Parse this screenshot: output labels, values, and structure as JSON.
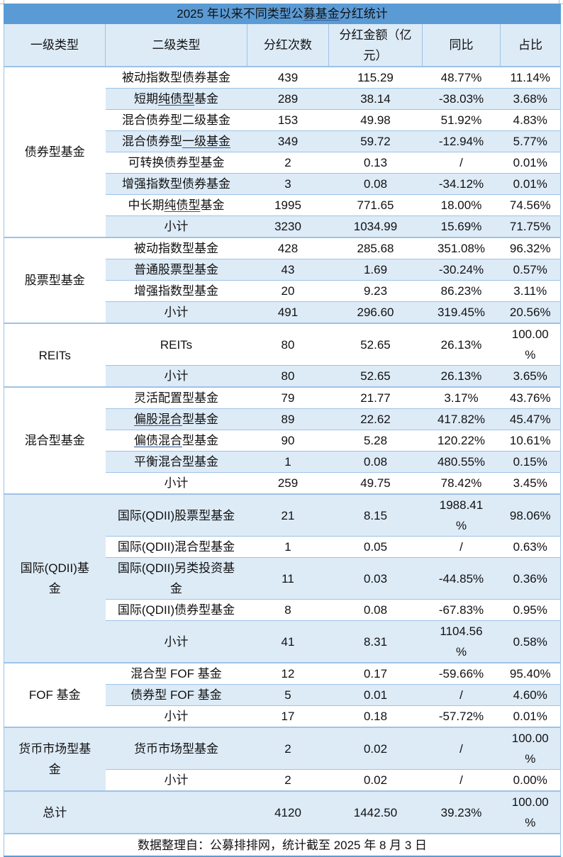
{
  "title": {
    "prefix": "2025 年以来不同类型公",
    "underlined": "募基金",
    "suffix": "分红统计"
  },
  "columns": [
    "一级类型",
    "二级类型",
    "分红次数",
    "分红金额（亿元）",
    "同比",
    "占比"
  ],
  "header_wrapped": {
    "amount_line1": "分红金额（亿",
    "amount_line2": "元）"
  },
  "groups": [
    {
      "name": "债券型基金",
      "rows": [
        {
          "type": "被动指数型债券基金",
          "count": "439",
          "amount": "115.29",
          "yoy": "48.77%",
          "share": "11.14%"
        },
        {
          "type": "短期纯债型基金",
          "count": "289",
          "amount": "38.14",
          "yoy": "-38.03%",
          "share": "3.68%"
        },
        {
          "type": "混合债券型二级基金",
          "count": "153",
          "amount": "49.98",
          "yoy": "51.92%",
          "share": "4.83%"
        },
        {
          "type": "混合债券型一级基金",
          "count": "349",
          "amount": "59.72",
          "yoy": "-12.94%",
          "share": "5.77%"
        },
        {
          "type": "可转换债券型基金",
          "count": "2",
          "amount": "0.13",
          "yoy": "/",
          "share": "0.01%"
        },
        {
          "type": "增强指数型债券基金",
          "count": "3",
          "amount": "0.08",
          "yoy": "-34.12%",
          "share": "0.01%"
        },
        {
          "type": "中长期纯债型基金",
          "count": "1995",
          "amount": "771.65",
          "yoy": "18.00%",
          "share": "74.56%"
        },
        {
          "type": "小计",
          "count": "3230",
          "amount": "1034.99",
          "yoy": "15.69%",
          "share": "71.75%"
        }
      ]
    },
    {
      "name": "股票型基金",
      "rows": [
        {
          "type": "被动指数型基金",
          "count": "428",
          "amount": "285.68",
          "yoy": "351.08%",
          "share": "96.32%"
        },
        {
          "type": "普通股票型基金",
          "count": "43",
          "amount": "1.69",
          "yoy": "-30.24%",
          "share": "0.57%"
        },
        {
          "type": "增强指数型基金",
          "count": "20",
          "amount": "9.23",
          "yoy": "86.23%",
          "share": "3.11%"
        },
        {
          "type": "小计",
          "count": "491",
          "amount": "296.60",
          "yoy": "319.45%",
          "share": "20.56%"
        }
      ]
    },
    {
      "name": "REITs",
      "rows": [
        {
          "type": "REITs",
          "count": "80",
          "amount": "52.65",
          "yoy": "26.13%",
          "share": "100.00%"
        },
        {
          "type": "小计",
          "count": "80",
          "amount": "52.65",
          "yoy": "26.13%",
          "share": "3.65%"
        }
      ]
    },
    {
      "name": "混合型基金",
      "rows": [
        {
          "type": "灵活配置型基金",
          "count": "79",
          "amount": "21.77",
          "yoy": "3.17%",
          "share": "43.76%"
        },
        {
          "type": "偏股混合型基金",
          "count": "89",
          "amount": "22.62",
          "yoy": "417.82%",
          "share": "45.47%"
        },
        {
          "type": "偏债混合型基金",
          "count": "90",
          "amount": "5.28",
          "yoy": "120.22%",
          "share": "10.61%"
        },
        {
          "type": "平衡混合型基金",
          "count": "1",
          "amount": "0.08",
          "yoy": "480.55%",
          "share": "0.15%"
        },
        {
          "type": "小计",
          "count": "259",
          "amount": "49.75",
          "yoy": "78.42%",
          "share": "3.45%"
        }
      ]
    },
    {
      "name": "国际(QDII)基金",
      "rows": [
        {
          "type": "国际(QDII)股票型基金",
          "count": "21",
          "amount": "8.15",
          "yoy": "1988.41%",
          "share": "98.06%"
        },
        {
          "type": "国际(QDII)混合型基金",
          "count": "1",
          "amount": "0.05",
          "yoy": "/",
          "share": "0.63%"
        },
        {
          "type": "国际(QDII)另类投资基金",
          "count": "11",
          "amount": "0.03",
          "yoy": "-44.85%",
          "share": "0.36%"
        },
        {
          "type": "国际(QDII)债券型基金",
          "count": "8",
          "amount": "0.08",
          "yoy": "-67.83%",
          "share": "0.95%"
        },
        {
          "type": "小计",
          "count": "41",
          "amount": "8.31",
          "yoy": "1104.56%",
          "share": "0.58%"
        }
      ]
    },
    {
      "name": "FOF 基金",
      "rows": [
        {
          "type": "混合型 FOF 基金",
          "count": "12",
          "amount": "0.17",
          "yoy": "-59.66%",
          "share": "95.40%"
        },
        {
          "type": "债券型 FOF 基金",
          "count": "5",
          "amount": "0.01",
          "yoy": "/",
          "share": "4.60%"
        },
        {
          "type": "小计",
          "count": "17",
          "amount": "0.18",
          "yoy": "-57.72%",
          "share": "0.01%"
        }
      ]
    },
    {
      "name": "货币市场型基金",
      "rows": [
        {
          "type": "货币市场型基金",
          "count": "2",
          "amount": "0.02",
          "yoy": "/",
          "share": "100.00%"
        },
        {
          "type": "小计",
          "count": "2",
          "amount": "0.02",
          "yoy": "/",
          "share": "0.00%"
        }
      ]
    }
  ],
  "total": {
    "label": "总计",
    "count": "4120",
    "amount": "1442.50",
    "yoy": "39.23%",
    "share": "100.00%"
  },
  "footer": "数据整理自：公募排排网，统计截至 2025 年 8 月 3 日",
  "colors": {
    "title_bg": "#5b9bd5",
    "band_bg": "#ddebf7",
    "border": "#9dc3e6",
    "underline": "#2f5597"
  }
}
